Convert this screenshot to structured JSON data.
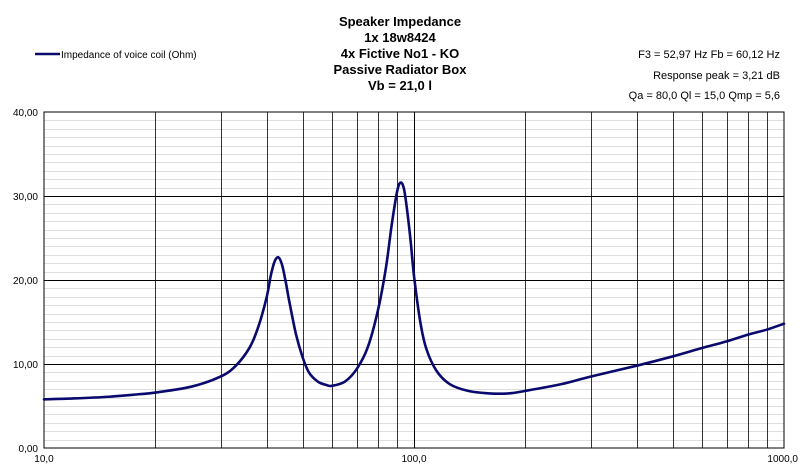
{
  "chart_data": {
    "type": "line",
    "title_lines": [
      "Speaker Impedance",
      "1x 18w8424",
      "4x Fictive No1 - KO",
      "Passive Radiator Box",
      "Vb = 21,0 l"
    ],
    "parameters": [
      "F3 = 52,97 Hz  Fb = 60,12 Hz",
      "Response  peak = 3,21 dB",
      "Qa = 80,0  Ql = 15,0  Qmp = 5,6"
    ],
    "x_scale": "log",
    "xlim": [
      10,
      1000
    ],
    "ylim": [
      0,
      40
    ],
    "x_tick_labels": [
      "10,0",
      "100,0",
      "1000,0"
    ],
    "x_tick_values": [
      10,
      100,
      1000
    ],
    "y_tick_labels": [
      "0,00",
      "10,00",
      "20,00",
      "30,00",
      "40,00"
    ],
    "y_tick_values": [
      0,
      10,
      20,
      30,
      40
    ],
    "grid": true,
    "legend_position": "top-left",
    "colors": {
      "series": "#0a0a6e",
      "grid": "#000000",
      "background": "#ffffff"
    },
    "series": [
      {
        "name": "Impedance of voice coil (Ohm)",
        "x": [
          10,
          12,
          15,
          18,
          20,
          25,
          30,
          33,
          36,
          38,
          40,
          41,
          42,
          43,
          44,
          45,
          46,
          48,
          50,
          52,
          55,
          58,
          60,
          65,
          70,
          75,
          80,
          84,
          87,
          90,
          92,
          94,
          96,
          98,
          100,
          104,
          108,
          115,
          125,
          140,
          160,
          180,
          200,
          250,
          300,
          400,
          500,
          600,
          700,
          800,
          900,
          1000
        ],
        "y": [
          5.8,
          5.9,
          6.1,
          6.4,
          6.6,
          7.3,
          8.5,
          9.8,
          12.0,
          14.5,
          18.0,
          20.5,
          22.2,
          22.7,
          21.8,
          19.8,
          17.5,
          13.5,
          10.8,
          9.0,
          7.9,
          7.5,
          7.4,
          7.9,
          9.4,
          12.0,
          16.5,
          21.5,
          26.5,
          30.5,
          31.6,
          30.8,
          28.0,
          24.5,
          20.5,
          15.0,
          11.8,
          9.2,
          7.6,
          6.8,
          6.5,
          6.5,
          6.8,
          7.6,
          8.5,
          9.8,
          10.9,
          11.9,
          12.7,
          13.5,
          14.1,
          14.8
        ]
      }
    ]
  }
}
